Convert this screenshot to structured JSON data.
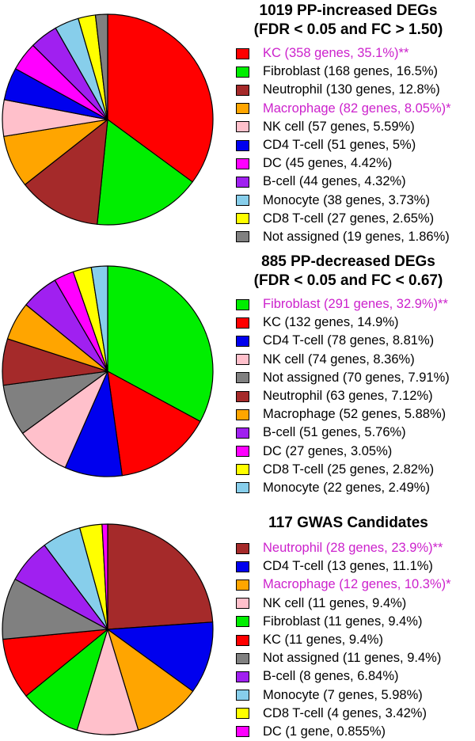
{
  "chart_data": [
    {
      "type": "pie",
      "title": [
        "1019 PP-increased DEGs",
        "(FDR < 0.05 and FC > 1.50)"
      ],
      "slices": [
        {
          "label": "KC (358 genes, 35.1%)**",
          "value": 35.1,
          "color": "#ff0000",
          "highlight": true
        },
        {
          "label": "Fibroblast (168 genes, 16.5%)",
          "value": 16.5,
          "color": "#00ee00",
          "highlight": false
        },
        {
          "label": "Neutrophil (130 genes, 12.8%)",
          "value": 12.8,
          "color": "#a52a2a",
          "highlight": false
        },
        {
          "label": "Macrophage (82 genes, 8.05%)*",
          "value": 8.05,
          "color": "#ffa500",
          "highlight": true
        },
        {
          "label": "NK cell (57 genes, 5.59%)",
          "value": 5.59,
          "color": "#ffc0cb",
          "highlight": false
        },
        {
          "label": "CD4 T-cell (51 genes, 5%)",
          "value": 5,
          "color": "#0000ee",
          "highlight": false
        },
        {
          "label": "DC (45 genes, 4.42%)",
          "value": 4.42,
          "color": "#ff00ff",
          "highlight": false
        },
        {
          "label": "B-cell (44 genes, 4.32%)",
          "value": 4.32,
          "color": "#a020f0",
          "highlight": false
        },
        {
          "label": "Monocyte (38 genes, 3.73%)",
          "value": 3.73,
          "color": "#87ceeb",
          "highlight": false
        },
        {
          "label": "CD8 T-cell (27 genes, 2.65%)",
          "value": 2.65,
          "color": "#ffff00",
          "highlight": false
        },
        {
          "label": "Not assigned (19 genes, 1.86%)",
          "value": 1.86,
          "color": "#808080",
          "highlight": false
        }
      ]
    },
    {
      "type": "pie",
      "title": [
        "885 PP-decreased DEGs",
        "(FDR < 0.05 and FC < 0.67)"
      ],
      "slices": [
        {
          "label": "Fibroblast (291 genes, 32.9%)**",
          "value": 32.9,
          "color": "#00ee00",
          "highlight": true
        },
        {
          "label": "KC (132 genes, 14.9%)",
          "value": 14.9,
          "color": "#ff0000",
          "highlight": false
        },
        {
          "label": "CD4 T-cell (78 genes, 8.81%)",
          "value": 8.81,
          "color": "#0000ee",
          "highlight": false
        },
        {
          "label": "NK cell (74 genes, 8.36%)",
          "value": 8.36,
          "color": "#ffc0cb",
          "highlight": false
        },
        {
          "label": "Not assigned (70 genes, 7.91%)",
          "value": 7.91,
          "color": "#808080",
          "highlight": false
        },
        {
          "label": "Neutrophil (63 genes, 7.12%)",
          "value": 7.12,
          "color": "#a52a2a",
          "highlight": false
        },
        {
          "label": "Macrophage (52 genes, 5.88%)",
          "value": 5.88,
          "color": "#ffa500",
          "highlight": false
        },
        {
          "label": "B-cell (51 genes, 5.76%)",
          "value": 5.76,
          "color": "#a020f0",
          "highlight": false
        },
        {
          "label": "DC (27 genes, 3.05%)",
          "value": 3.05,
          "color": "#ff00ff",
          "highlight": false
        },
        {
          "label": "CD8 T-cell (25 genes, 2.82%)",
          "value": 2.82,
          "color": "#ffff00",
          "highlight": false
        },
        {
          "label": "Monocyte (22 genes, 2.49%)",
          "value": 2.49,
          "color": "#87ceeb",
          "highlight": false
        }
      ]
    },
    {
      "type": "pie",
      "title": [
        "117 GWAS Candidates"
      ],
      "slices": [
        {
          "label": "Neutrophil (28 genes, 23.9%)**",
          "value": 23.9,
          "color": "#a52a2a",
          "highlight": true
        },
        {
          "label": "CD4 T-cell (13 genes, 11.1%)",
          "value": 11.1,
          "color": "#0000ee",
          "highlight": false
        },
        {
          "label": "Macrophage (12 genes, 10.3%)*",
          "value": 10.3,
          "color": "#ffa500",
          "highlight": true
        },
        {
          "label": "NK cell (11 genes, 9.4%)",
          "value": 9.4,
          "color": "#ffc0cb",
          "highlight": false
        },
        {
          "label": "Fibroblast (11 genes, 9.4%)",
          "value": 9.4,
          "color": "#00ee00",
          "highlight": false
        },
        {
          "label": "KC (11 genes, 9.4%)",
          "value": 9.4,
          "color": "#ff0000",
          "highlight": false
        },
        {
          "label": "Not assigned (11 genes, 9.4%)",
          "value": 9.4,
          "color": "#808080",
          "highlight": false
        },
        {
          "label": "B-cell (8 genes, 6.84%)",
          "value": 6.84,
          "color": "#a020f0",
          "highlight": false
        },
        {
          "label": "Monocyte (7 genes, 5.98%)",
          "value": 5.98,
          "color": "#87ceeb",
          "highlight": false
        },
        {
          "label": "CD8 T-cell (4 genes, 3.42%)",
          "value": 3.42,
          "color": "#ffff00",
          "highlight": false
        },
        {
          "label": "DC (1 gene, 0.855%)",
          "value": 0.855,
          "color": "#ff00ff",
          "highlight": false
        }
      ]
    }
  ]
}
